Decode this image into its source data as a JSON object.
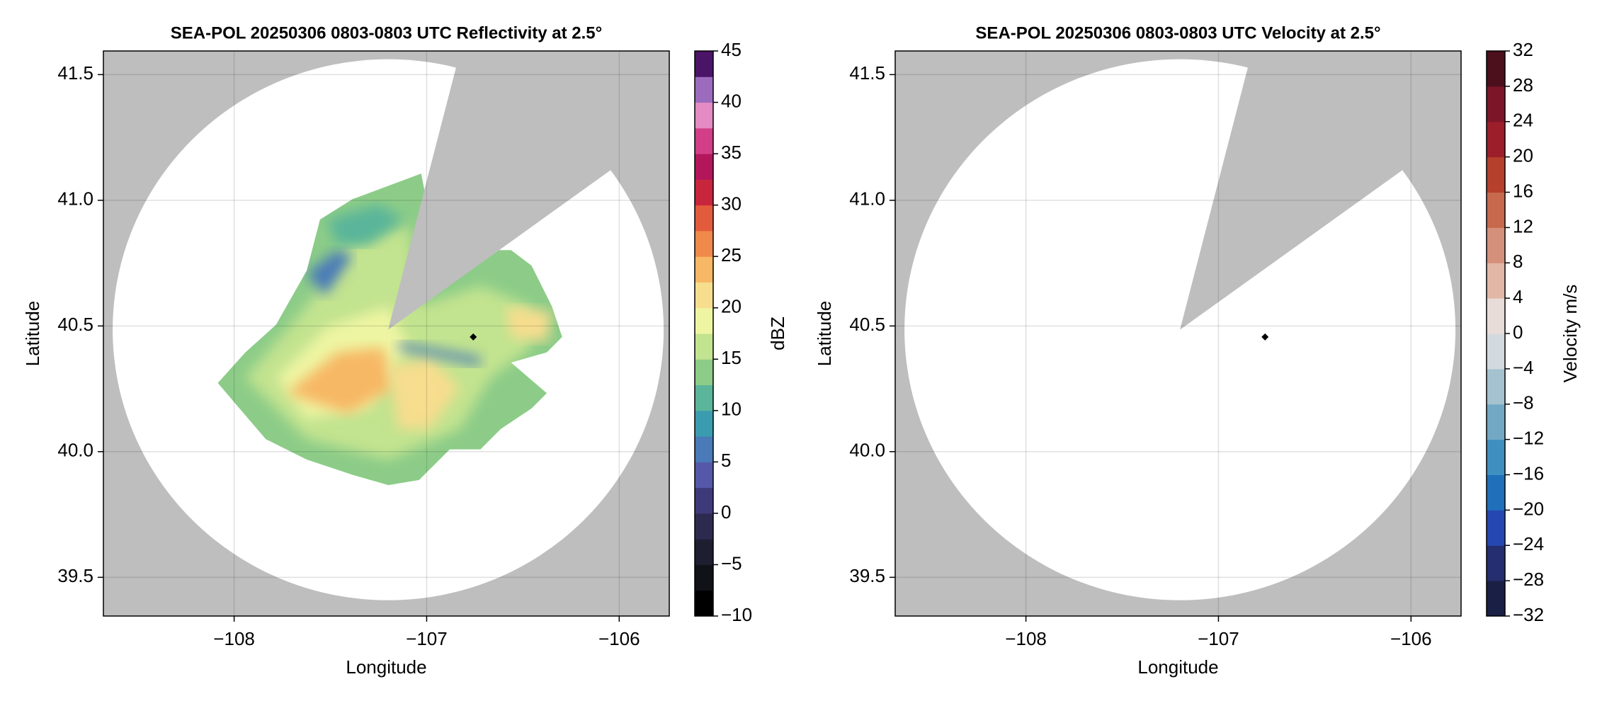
{
  "chart_data": [
    {
      "type": "ppi",
      "title": "SEA-POL 20250306 0803-0803 UTC Reflectivity at 2.5°",
      "xlabel": "Longitude",
      "ylabel": "Latitude",
      "xlim": [
        -108.679,
        -105.74
      ],
      "ylim": [
        39.346,
        41.594
      ],
      "xticks": [
        {
          "value": -108,
          "label": "−108"
        },
        {
          "value": -107,
          "label": "−107"
        },
        {
          "value": -106,
          "label": "−106"
        }
      ],
      "yticks": [
        39.5,
        {
          "value": 40,
          "label": "40.0"
        },
        40.5,
        {
          "value": 41,
          "label": "41.0"
        },
        41.5
      ],
      "grid": true,
      "colorbar": {
        "label": "dBZ",
        "lim": [
          -10,
          45
        ],
        "ticks": [
          {
            "value": -10,
            "label": "−10"
          },
          {
            "value": -5,
            "label": "−5"
          },
          0,
          5,
          10,
          15,
          20,
          25,
          30,
          35,
          40,
          45
        ],
        "colors": [
          "#000000",
          "#111118",
          "#1f1d30",
          "#2e2a4f",
          "#3e3a7a",
          "#5558a8",
          "#4a7ab8",
          "#3b9cb0",
          "#5ab59a",
          "#8ccc88",
          "#c2e38f",
          "#eef5a2",
          "#f7dd8e",
          "#f7b865",
          "#f08a4c",
          "#e35b3d",
          "#c8263c",
          "#b3165a",
          "#d23f88",
          "#e48bc4",
          "#9c6bbd",
          "#4a1566"
        ]
      }
    },
    {
      "type": "ppi",
      "title": "SEA-POL 20250306 0803-0803 UTC Velocity at 2.5°",
      "xlabel": "Longitude",
      "ylabel": "Latitude",
      "xlim": [
        -108.679,
        -105.74
      ],
      "ylim": [
        39.346,
        41.594
      ],
      "xticks": [
        {
          "value": -108,
          "label": "−108"
        },
        {
          "value": -107,
          "label": "−107"
        },
        {
          "value": -106,
          "label": "−106"
        }
      ],
      "yticks": [
        39.5,
        {
          "value": 40,
          "label": "40.0"
        },
        40.5,
        {
          "value": 41,
          "label": "41.0"
        },
        41.5
      ],
      "grid": true,
      "colorbar": {
        "label": "Velocity m/s",
        "lim": [
          -32,
          32
        ],
        "ticks": [
          {
            "value": -32,
            "label": "−32"
          },
          {
            "value": -28,
            "label": "−28"
          },
          {
            "value": -24,
            "label": "−24"
          },
          {
            "value": -20,
            "label": "−20"
          },
          {
            "value": -16,
            "label": "−16"
          },
          {
            "value": -12,
            "label": "−12"
          },
          {
            "value": -8,
            "label": "−8"
          },
          {
            "value": -4,
            "label": "−4"
          },
          0,
          4,
          8,
          12,
          16,
          20,
          24,
          28,
          32
        ],
        "colors": [
          "#1a1f45",
          "#252e6e",
          "#2548b0",
          "#1f6fba",
          "#3f8fc0",
          "#72a8c4",
          "#a4c2cf",
          "#d3dadf",
          "#e8dcd9",
          "#e2b7a6",
          "#d4907a",
          "#c6694c",
          "#b5402b",
          "#9b1e2a",
          "#7d1528",
          "#4c0f1c"
        ]
      }
    }
  ]
}
